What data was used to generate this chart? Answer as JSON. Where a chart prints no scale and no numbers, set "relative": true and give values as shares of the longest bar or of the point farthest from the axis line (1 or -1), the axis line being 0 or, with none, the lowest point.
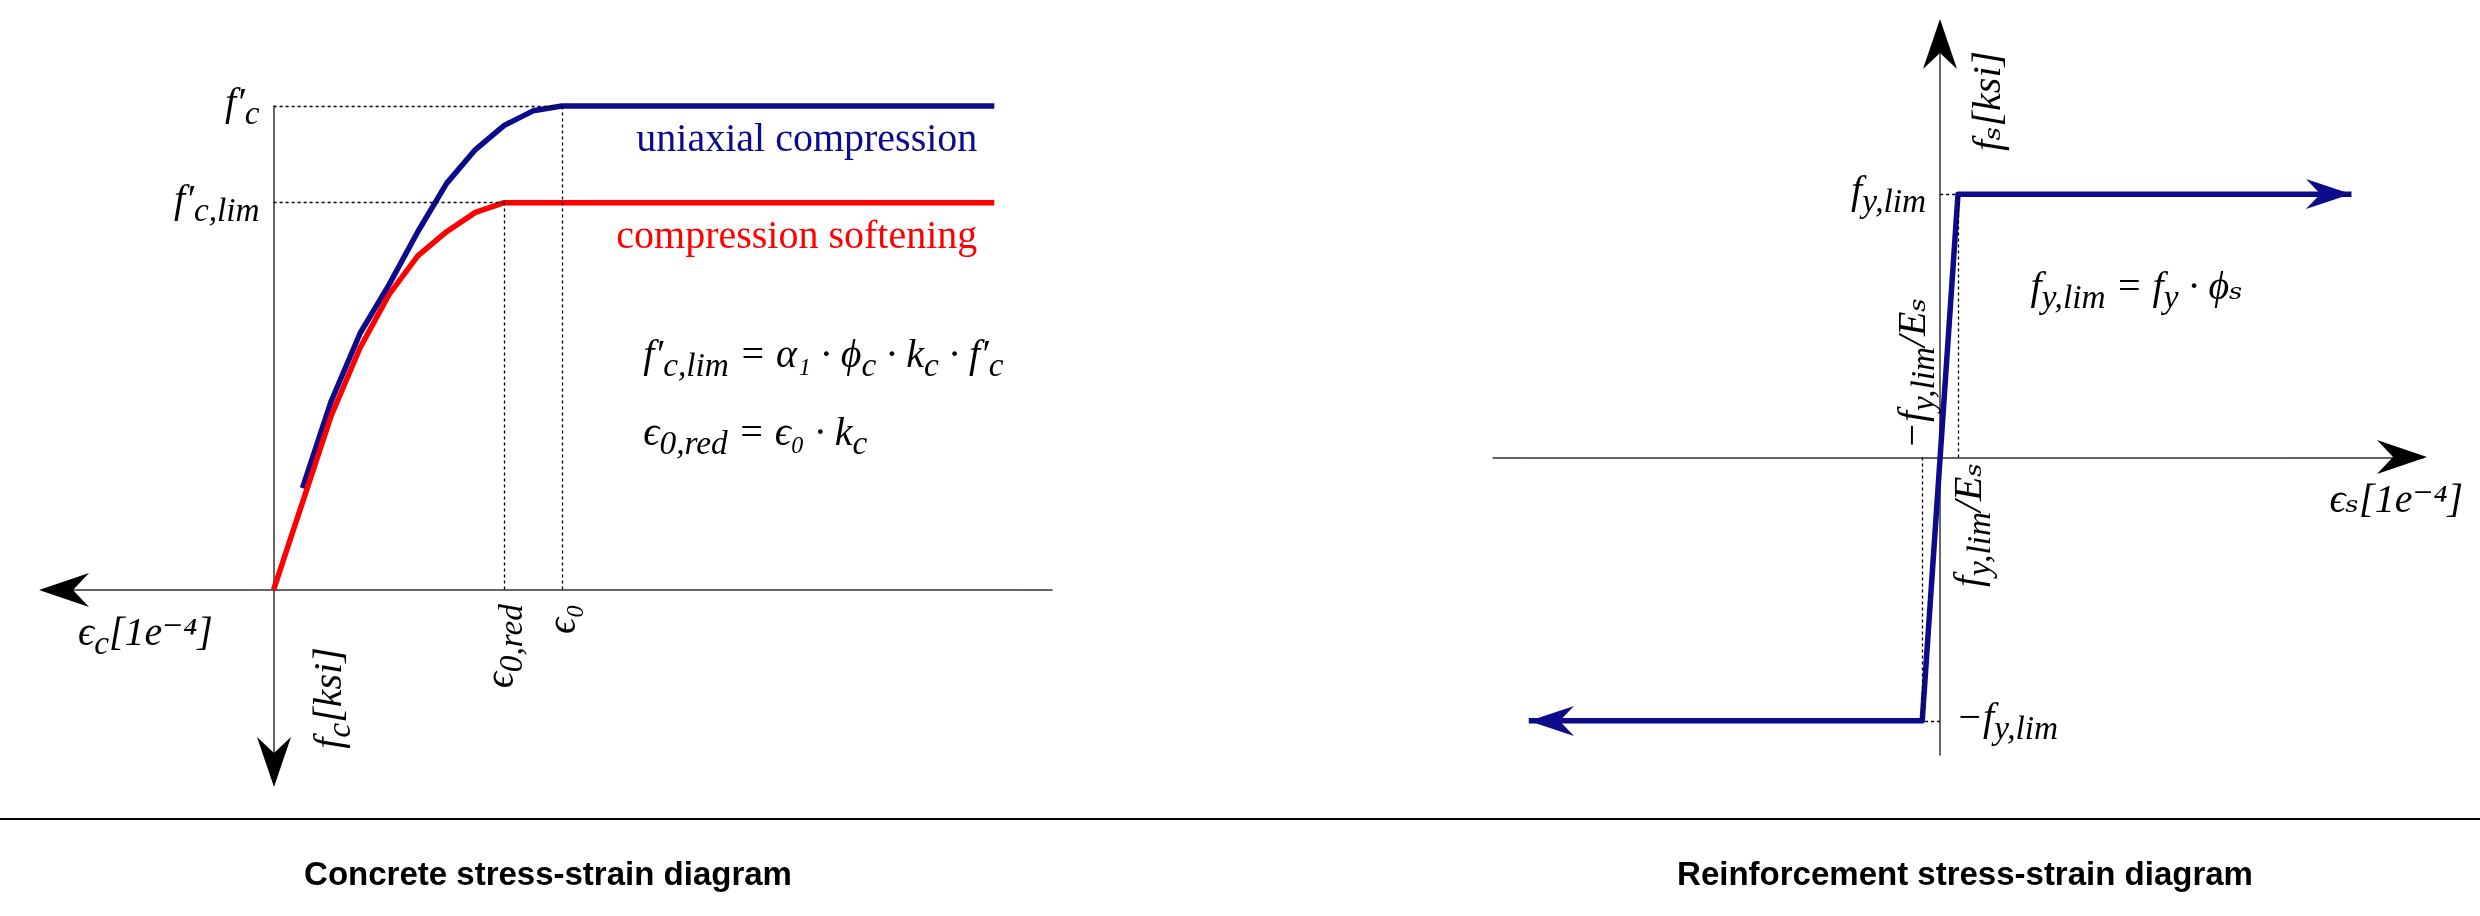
{
  "chart_data": [
    {
      "type": "line",
      "title": "Concrete stress-strain diagram",
      "xlabel": "ϵ$_{c}$[1e⁻⁴]",
      "ylabel": "f$_{c}$[ksi]",
      "relative": true,
      "categories": [
        null,
        null,
        null,
        null,
        null,
        null,
        null,
        null,
        null,
        null,
        null,
        null,
        null,
        null,
        null,
        null,
        "ϵ$_{0,red}$",
        null,
        "ϵ₀",
        null,
        null,
        null,
        null,
        null,
        null,
        null,
        null,
        null,
        null,
        null,
        null,
        null,
        null,
        null,
        null,
        null
      ],
      "series": [
        {
          "name": "uniaxial compression",
          "color": "#0b0b8b",
          "values": [
            null,
            null,
            null,
            null,
            null,
            null,
            null,
            null,
            null,
            0.21,
            0.39,
            0.53,
            0.63,
            0.74,
            0.84,
            0.91,
            0.96,
            0.99,
            1,
            1,
            1,
            1,
            1,
            1,
            1,
            1,
            1,
            1,
            1,
            1,
            1,
            1,
            1,
            1,
            null,
            null
          ]
        },
        {
          "name": "compression softening",
          "color": "#ff0000",
          "values": [
            null,
            null,
            null,
            null,
            null,
            null,
            null,
            null,
            0,
            0.18,
            0.36,
            0.5,
            0.61,
            0.69,
            0.74,
            0.78,
            0.8,
            0.8,
            0.8,
            0.8,
            0.8,
            0.8,
            0.8,
            0.8,
            0.8,
            0.8,
            0.8,
            0.8,
            0.8,
            0.8,
            0.8,
            0.8,
            0.8,
            0.8,
            null,
            null
          ]
        }
      ],
      "annotations": [
        "f′$_{c,lim}$ = α₁ · ϕ$_{c}$ · k$_{c}$ · f′$_{c}$",
        "ϵ$_{0,red}$ = ϵ₀ · k$_{c}$",
        "f′$_{c}$",
        "f′$_{c,lim}$"
      ]
    },
    {
      "type": "line",
      "title": "Reinforcement stress-strain diagram",
      "xlabel": "ϵₛ[1e⁻⁴]",
      "ylabel": "fₛ[ksi]",
      "relative": true,
      "categories": [
        null,
        null,
        null,
        null,
        null,
        null,
        null,
        null,
        null,
        null,
        null,
        null,
        "−f$_{y,lim}$/Eₛ",
        "f$_{y,lim}$/Eₛ",
        null,
        null,
        null,
        null,
        null,
        null,
        null,
        null,
        null,
        null,
        null,
        null,
        null
      ],
      "series": [
        {
          "color": "#0b0b8b",
          "values": [
            null,
            -1,
            -1,
            -1,
            -1,
            -1,
            -1,
            -1,
            -1,
            -1,
            -1,
            -1,
            -1,
            1,
            1,
            1,
            1,
            1,
            1,
            1,
            1,
            1,
            1,
            1,
            1,
            null,
            null
          ]
        }
      ],
      "annotations": [
        "f$_{y,lim}$ = f$_{y}$ · ϕₛ",
        "f$_{y,lim}$",
        "−f$_{y,lim}$"
      ]
    }
  ]
}
